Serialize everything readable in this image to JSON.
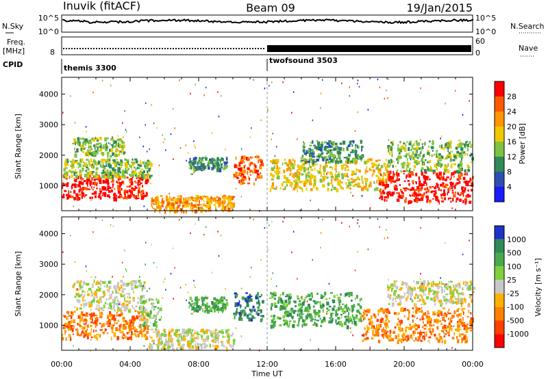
{
  "header": {
    "station": "Inuvik (fitACF)",
    "beam": "Beam 09",
    "date": "19/Jan/2015"
  },
  "top_panels": {
    "nsky_label": "N.Sky",
    "nsky_ticks": [
      "10^5",
      "10^0"
    ],
    "nsearch_label": "N.Search",
    "nsearch_ticks": [
      "10^5",
      "10^0"
    ],
    "freq_label": "Freq.",
    "freq_unit": "[MHz]",
    "freq_ticks": [
      "8"
    ],
    "nave_label": "Nave",
    "nave_ticks": [
      "60",
      "0"
    ],
    "cpid_label": "CPID",
    "cpid_modes": [
      {
        "name": "themis 3300",
        "start_hour": 0
      },
      {
        "name": "twofsound 3503",
        "start_hour": 12
      }
    ]
  },
  "chart_data": [
    {
      "type": "heatmap",
      "name": "power-panel",
      "xlabel": "",
      "ylabel": "Slant Range [km]",
      "xlim": [
        0,
        24
      ],
      "ylim": [
        180,
        4550
      ],
      "y_ticks": [
        "1000",
        "2000",
        "3000",
        "4000"
      ],
      "colorbar_label": "Power [dB]",
      "colorbar_ticks": [
        "4",
        "8",
        "12",
        "16",
        "20",
        "24",
        "28"
      ],
      "colors": [
        "#1a1aff",
        "#2b50b0",
        "#2e8b57",
        "#7fc241",
        "#f0c800",
        "#ff9500",
        "#ff5a00",
        "#ff0000"
      ],
      "regions": [
        {
          "t0": 0.0,
          "t1": 5.0,
          "r0": 600,
          "r1": 1400,
          "level": 7
        },
        {
          "t0": 0.1,
          "t1": 5.2,
          "r0": 1300,
          "r1": 1900,
          "level": 3
        },
        {
          "t0": 0.6,
          "t1": 3.6,
          "r0": 2000,
          "r1": 2600,
          "level": 3
        },
        {
          "t0": 5.2,
          "t1": 10.0,
          "r0": 200,
          "r1": 700,
          "level": 5
        },
        {
          "t0": 7.4,
          "t1": 9.6,
          "r0": 1550,
          "r1": 1950,
          "level": 2
        },
        {
          "t0": 10.0,
          "t1": 11.7,
          "r0": 1100,
          "r1": 2000,
          "level": 6
        },
        {
          "t0": 12.1,
          "t1": 19.0,
          "r0": 900,
          "r1": 1900,
          "level": 4
        },
        {
          "t0": 14.0,
          "t1": 17.5,
          "r0": 1800,
          "r1": 2500,
          "level": 2
        },
        {
          "t0": 18.5,
          "t1": 24.0,
          "r0": 500,
          "r1": 1500,
          "level": 7
        },
        {
          "t0": 19.0,
          "t1": 24.0,
          "r0": 1500,
          "r1": 2500,
          "level": 3
        }
      ]
    },
    {
      "type": "heatmap",
      "name": "velocity-panel",
      "xlabel": "Time UT",
      "ylabel": "Slant Range [km]",
      "xlim": [
        0,
        24
      ],
      "ylim": [
        180,
        4550
      ],
      "x_ticks": [
        "00:00",
        "04:00",
        "08:00",
        "12:00",
        "16:00",
        "20:00",
        "00:00"
      ],
      "y_ticks": [
        "1000",
        "2000",
        "3000",
        "4000"
      ],
      "colorbar_label": "Velocity [m s⁻¹]",
      "colorbar_ticks": [
        "1000",
        "500",
        "100",
        "25",
        "-25",
        "-100",
        "-500",
        "-1000"
      ],
      "colors": [
        "#1e32c8",
        "#2e8b57",
        "#4aaa4a",
        "#7fd03a",
        "#c8c8c8",
        "#ffb000",
        "#ff8000",
        "#ff4000",
        "#ff0000"
      ],
      "regions": [
        {
          "t0": 0.0,
          "t1": 5.0,
          "r0": 600,
          "r1": 1500,
          "level": 6
        },
        {
          "t0": 0.5,
          "t1": 4.8,
          "r0": 1500,
          "r1": 2500,
          "level": 4
        },
        {
          "t0": 4.5,
          "t1": 5.8,
          "r0": 1000,
          "r1": 1900,
          "level": 3
        },
        {
          "t0": 5.0,
          "t1": 10.0,
          "r0": 250,
          "r1": 900,
          "level": 4
        },
        {
          "t0": 7.4,
          "t1": 9.6,
          "r0": 1500,
          "r1": 1950,
          "level": 2
        },
        {
          "t0": 10.0,
          "t1": 11.7,
          "r0": 1200,
          "r1": 2100,
          "level": 1
        },
        {
          "t0": 12.1,
          "t1": 17.5,
          "r0": 1000,
          "r1": 2100,
          "level": 2
        },
        {
          "t0": 17.5,
          "t1": 24.0,
          "r0": 500,
          "r1": 1600,
          "level": 6
        },
        {
          "t0": 19.0,
          "t1": 24.0,
          "r0": 1700,
          "r1": 2500,
          "level": 4
        }
      ]
    }
  ]
}
